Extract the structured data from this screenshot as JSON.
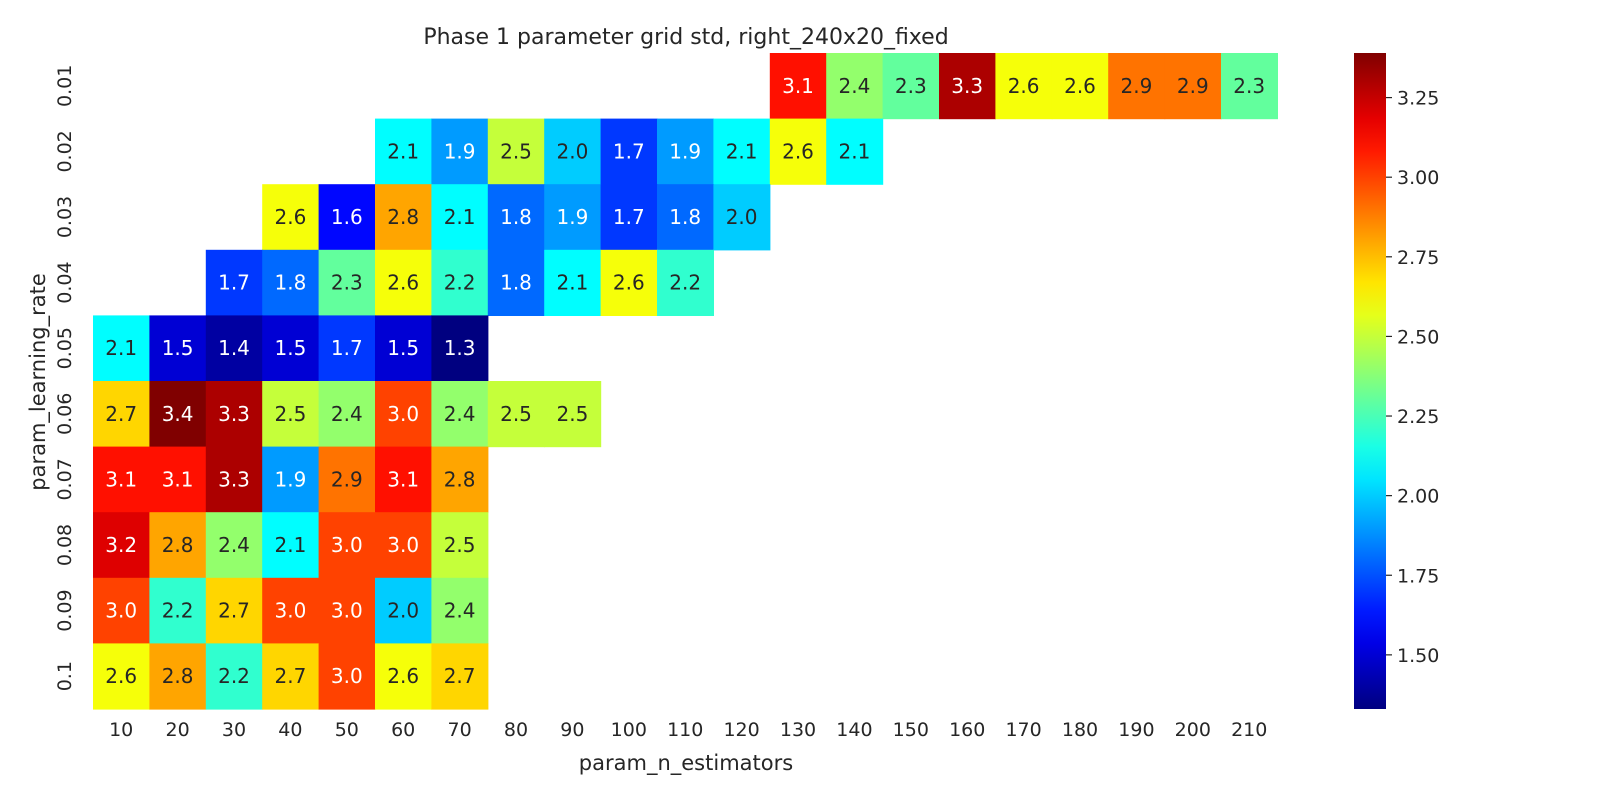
{
  "chart_data": {
    "type": "heatmap",
    "title": "Phase 1 parameter grid std, right_240x20_fixed",
    "xlabel": "param_n_estimators",
    "ylabel": "param_learning_rate",
    "x_categories": [
      "10",
      "20",
      "30",
      "40",
      "50",
      "60",
      "70",
      "80",
      "90",
      "100",
      "110",
      "120",
      "130",
      "140",
      "150",
      "160",
      "170",
      "180",
      "190",
      "200",
      "210"
    ],
    "y_categories": [
      "0.01",
      "0.02",
      "0.03",
      "0.04",
      "0.05",
      "0.06",
      "0.07",
      "0.08",
      "0.09",
      "0.1"
    ],
    "values": [
      [
        null,
        null,
        null,
        null,
        null,
        null,
        null,
        null,
        null,
        null,
        null,
        null,
        3.1,
        2.4,
        2.3,
        3.3,
        2.6,
        2.6,
        2.9,
        2.9,
        2.3
      ],
      [
        null,
        null,
        null,
        null,
        null,
        2.1,
        1.9,
        2.5,
        2.0,
        1.7,
        1.9,
        2.1,
        2.6,
        2.1,
        null,
        null,
        null,
        null,
        null,
        null,
        null
      ],
      [
        null,
        null,
        null,
        2.6,
        1.6,
        2.8,
        2.1,
        1.8,
        1.9,
        1.7,
        1.8,
        2.0,
        null,
        null,
        null,
        null,
        null,
        null,
        null,
        null,
        null
      ],
      [
        null,
        null,
        1.7,
        1.8,
        2.3,
        2.6,
        2.2,
        1.8,
        2.1,
        2.6,
        2.2,
        null,
        null,
        null,
        null,
        null,
        null,
        null,
        null,
        null,
        null
      ],
      [
        2.1,
        1.5,
        1.4,
        1.5,
        1.7,
        1.5,
        1.3,
        null,
        null,
        null,
        null,
        null,
        null,
        null,
        null,
        null,
        null,
        null,
        null,
        null,
        null
      ],
      [
        2.7,
        3.4,
        3.3,
        2.5,
        2.4,
        3.0,
        2.4,
        2.5,
        2.5,
        null,
        null,
        null,
        null,
        null,
        null,
        null,
        null,
        null,
        null,
        null,
        null
      ],
      [
        3.1,
        3.1,
        3.3,
        1.9,
        2.9,
        3.1,
        2.8,
        null,
        null,
        null,
        null,
        null,
        null,
        null,
        null,
        null,
        null,
        null,
        null,
        null,
        null
      ],
      [
        3.2,
        2.8,
        2.4,
        2.1,
        3.0,
        3.0,
        2.5,
        null,
        null,
        null,
        null,
        null,
        null,
        null,
        null,
        null,
        null,
        null,
        null,
        null,
        null
      ],
      [
        3.0,
        2.2,
        2.7,
        3.0,
        3.0,
        2.0,
        2.4,
        null,
        null,
        null,
        null,
        null,
        null,
        null,
        null,
        null,
        null,
        null,
        null,
        null,
        null
      ],
      [
        2.6,
        2.8,
        2.2,
        2.7,
        3.0,
        2.6,
        2.7,
        null,
        null,
        null,
        null,
        null,
        null,
        null,
        null,
        null,
        null,
        null,
        null,
        null,
        null
      ]
    ],
    "colormap": "jet",
    "color_range": [
      1.33,
      3.39
    ],
    "colorbar_ticks": [
      "1.50",
      "1.75",
      "2.00",
      "2.25",
      "2.50",
      "2.75",
      "3.00",
      "3.25"
    ],
    "colorbar_tick_values": [
      1.5,
      1.75,
      2.0,
      2.25,
      2.5,
      2.75,
      3.0,
      3.25
    ],
    "grid": false,
    "legend": "colorbar-right"
  }
}
